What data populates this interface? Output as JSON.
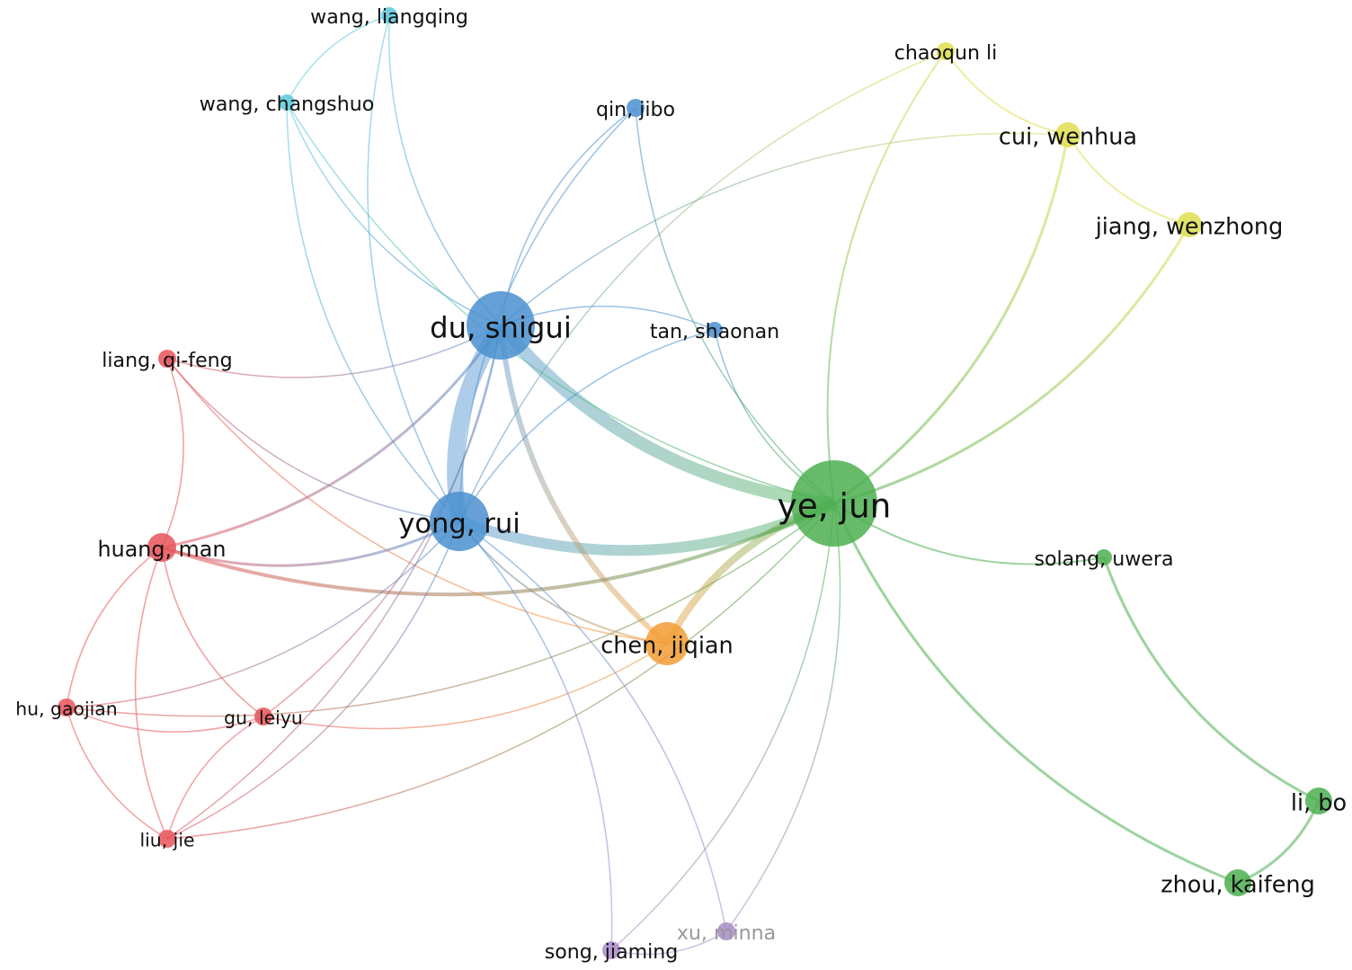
{
  "clusters": {
    "red": "#e8545a",
    "blue": "#4a90d0",
    "green": "#4caf50",
    "yellow": "#dede50",
    "orange": "#f39c34",
    "cyan": "#5bc8dc",
    "purple": "#a98bc9"
  },
  "nodes": [
    {
      "id": "du",
      "label": "du, shigui",
      "cluster": "blue"
    },
    {
      "id": "ye",
      "label": "ye, jun",
      "cluster": "green"
    },
    {
      "id": "yong",
      "label": "yong, rui",
      "cluster": "blue"
    },
    {
      "id": "chen",
      "label": "chen, jiqian",
      "cluster": "orange"
    },
    {
      "id": "huang",
      "label": "huang, man",
      "cluster": "red"
    },
    {
      "id": "liang",
      "label": "liang, qi-feng",
      "cluster": "red"
    },
    {
      "id": "hu",
      "label": "hu, gaojian",
      "cluster": "red"
    },
    {
      "id": "gu",
      "label": "gu, leiyu",
      "cluster": "red"
    },
    {
      "id": "liu",
      "label": "liu, jie",
      "cluster": "red"
    },
    {
      "id": "wangl",
      "label": "wang, liangqing",
      "cluster": "cyan"
    },
    {
      "id": "wangc",
      "label": "wang, changshuo",
      "cluster": "cyan"
    },
    {
      "id": "qin",
      "label": "qin, jibo",
      "cluster": "blue"
    },
    {
      "id": "tan",
      "label": "tan, shaonan",
      "cluster": "blue"
    },
    {
      "id": "chaoqun",
      "label": "chaoqun li",
      "cluster": "yellow"
    },
    {
      "id": "cui",
      "label": "cui, wenhua",
      "cluster": "yellow"
    },
    {
      "id": "jiang",
      "label": "jiang, wenzhong",
      "cluster": "yellow"
    },
    {
      "id": "solang",
      "label": "solang, uwera",
      "cluster": "green"
    },
    {
      "id": "libo",
      "label": "li, bo",
      "cluster": "green"
    },
    {
      "id": "zhou",
      "label": "zhou, kaifeng",
      "cluster": "green"
    },
    {
      "id": "song",
      "label": "song, jiaming",
      "cluster": "purple"
    },
    {
      "id": "xu",
      "label": "xu, minna",
      "cluster": "purple",
      "dimmed": true
    }
  ],
  "links": [
    {
      "s": "du",
      "t": "ye",
      "w": 7
    },
    {
      "s": "du",
      "t": "yong",
      "w": 9
    },
    {
      "s": "yong",
      "t": "ye",
      "w": 6
    },
    {
      "s": "ye",
      "t": "chen",
      "w": 4
    },
    {
      "s": "du",
      "t": "chen",
      "w": 3
    },
    {
      "s": "ye",
      "t": "cui",
      "w": 1.5
    },
    {
      "s": "ye",
      "t": "jiang",
      "w": 1.5
    },
    {
      "s": "ye",
      "t": "solang",
      "w": 1
    },
    {
      "s": "ye",
      "t": "zhou",
      "w": 1.5
    },
    {
      "s": "zhou",
      "t": "libo",
      "w": 1.5
    },
    {
      "s": "solang",
      "t": "libo",
      "w": 1.5
    },
    {
      "s": "chaoqun",
      "t": "cui",
      "w": 1
    },
    {
      "s": "cui",
      "t": "jiang",
      "w": 1
    },
    {
      "s": "chaoqun",
      "t": "ye",
      "w": 1
    },
    {
      "s": "chaoqun",
      "t": "yong",
      "w": 0.7
    },
    {
      "s": "cui",
      "t": "du",
      "w": 0.7
    },
    {
      "s": "wangl",
      "t": "wangc",
      "w": 0.7
    },
    {
      "s": "wangl",
      "t": "du",
      "w": 0.7
    },
    {
      "s": "wangl",
      "t": "yong",
      "w": 0.7
    },
    {
      "s": "wangc",
      "t": "du",
      "w": 0.7
    },
    {
      "s": "wangc",
      "t": "yong",
      "w": 0.7
    },
    {
      "s": "wangc",
      "t": "ye",
      "w": 0.7
    },
    {
      "s": "qin",
      "t": "du",
      "w": 0.7
    },
    {
      "s": "qin",
      "t": "yong",
      "w": 0.7
    },
    {
      "s": "qin",
      "t": "ye",
      "w": 0.7
    },
    {
      "s": "tan",
      "t": "du",
      "w": 0.7
    },
    {
      "s": "tan",
      "t": "yong",
      "w": 0.7
    },
    {
      "s": "tan",
      "t": "ye",
      "w": 0.7
    },
    {
      "s": "huang",
      "t": "du",
      "w": 1.5
    },
    {
      "s": "huang",
      "t": "yong",
      "w": 1.5
    },
    {
      "s": "huang",
      "t": "ye",
      "w": 2
    },
    {
      "s": "huang",
      "t": "liang",
      "w": 0.8
    },
    {
      "s": "huang",
      "t": "hu",
      "w": 0.8
    },
    {
      "s": "huang",
      "t": "gu",
      "w": 0.8
    },
    {
      "s": "huang",
      "t": "liu",
      "w": 0.8
    },
    {
      "s": "liang",
      "t": "du",
      "w": 0.7
    },
    {
      "s": "liang",
      "t": "yong",
      "w": 0.7
    },
    {
      "s": "liang",
      "t": "chen",
      "w": 0.7
    },
    {
      "s": "hu",
      "t": "gu",
      "w": 0.7
    },
    {
      "s": "hu",
      "t": "liu",
      "w": 0.7
    },
    {
      "s": "hu",
      "t": "yong",
      "w": 0.7
    },
    {
      "s": "hu",
      "t": "ye",
      "w": 0.7
    },
    {
      "s": "gu",
      "t": "liu",
      "w": 0.7
    },
    {
      "s": "gu",
      "t": "du",
      "w": 0.7
    },
    {
      "s": "gu",
      "t": "chen",
      "w": 0.7
    },
    {
      "s": "liu",
      "t": "du",
      "w": 0.7
    },
    {
      "s": "liu",
      "t": "ye",
      "w": 0.7
    },
    {
      "s": "liu",
      "t": "yong",
      "w": 0.7
    },
    {
      "s": "song",
      "t": "yong",
      "w": 0.7
    },
    {
      "s": "song",
      "t": "xu",
      "w": 0.7
    },
    {
      "s": "song",
      "t": "ye",
      "w": 0.7
    },
    {
      "s": "xu",
      "t": "yong",
      "w": 0.7
    },
    {
      "s": "xu",
      "t": "ye",
      "w": 0.7
    },
    {
      "s": "yong",
      "t": "chen",
      "w": 1
    }
  ]
}
